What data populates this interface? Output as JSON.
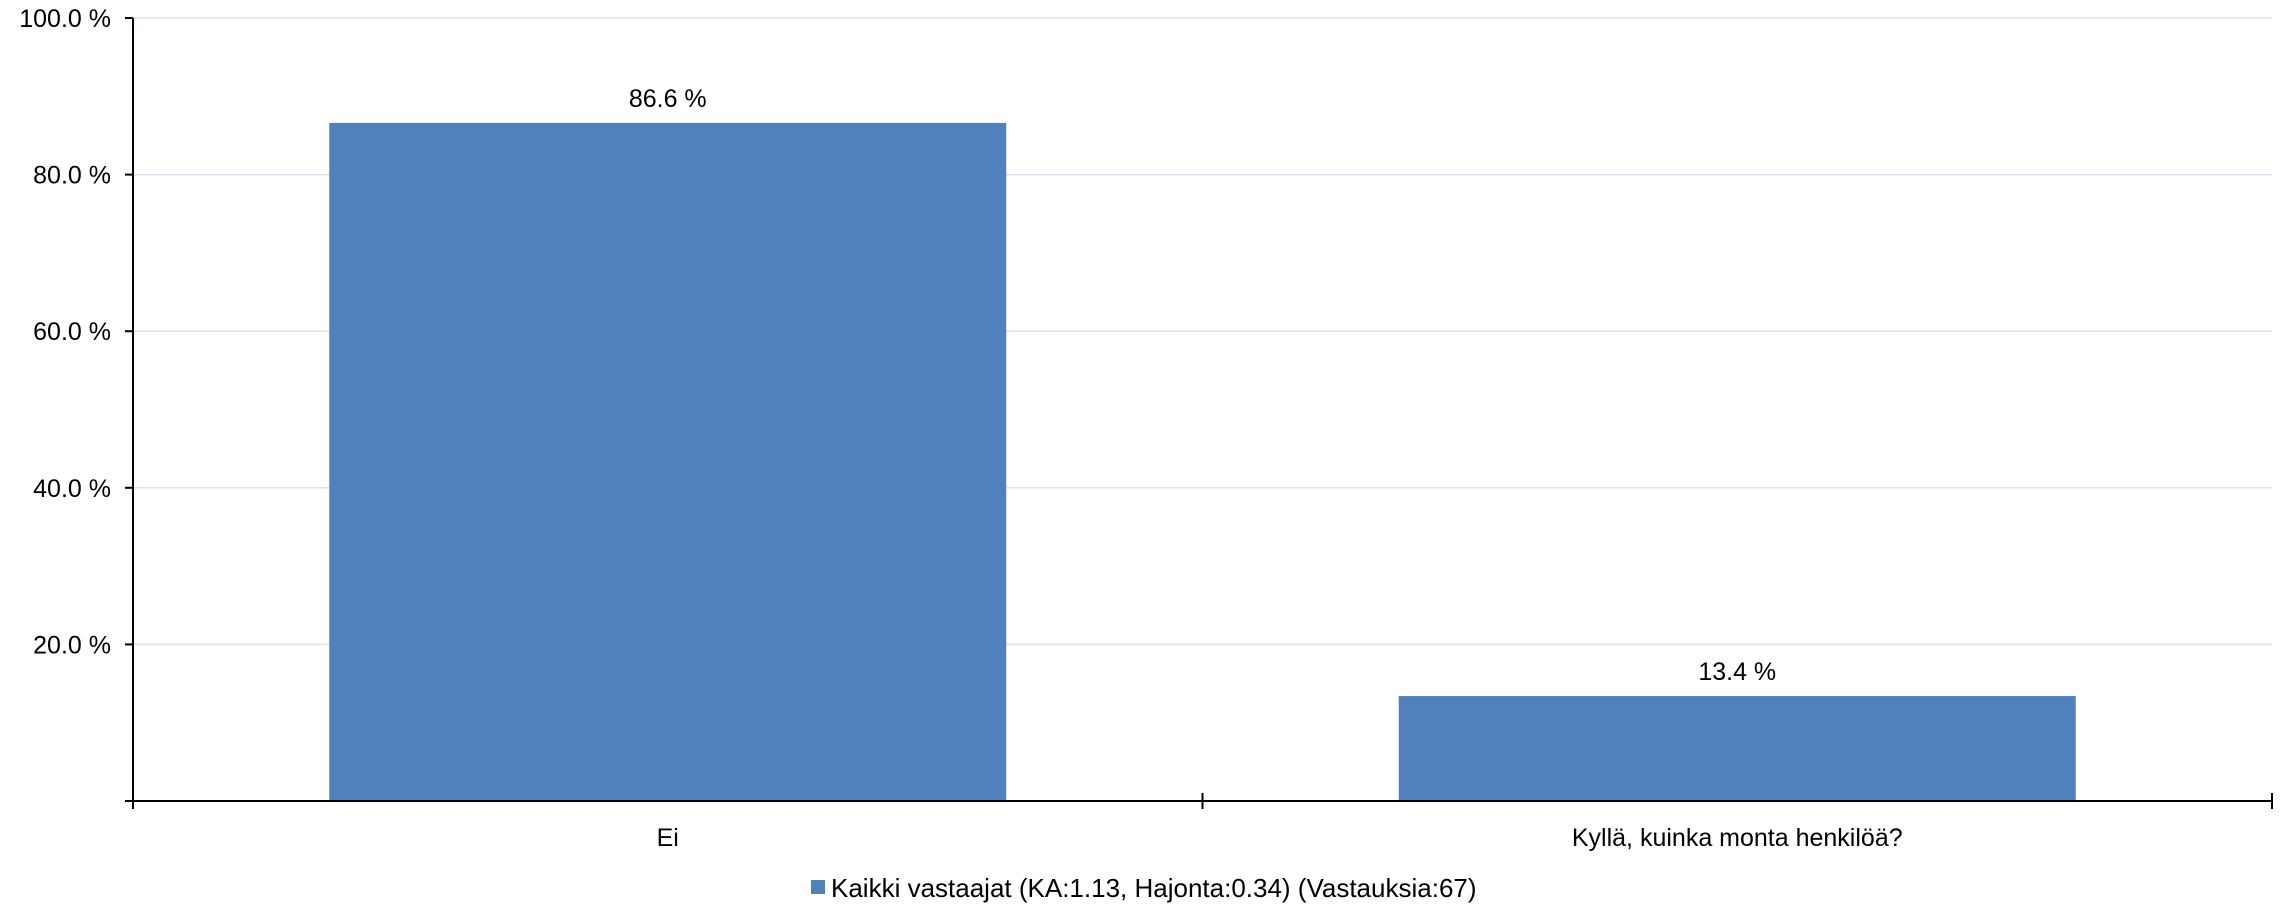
{
  "chart_data": {
    "type": "bar",
    "categories": [
      "Ei",
      "Kyllä, kuinka monta henkilöä?"
    ],
    "series": [
      {
        "name": "Kaikki vastaajat (KA:1.13, Hajonta:0.34) (Vastauksia:67)",
        "values": [
          86.6,
          13.4
        ],
        "color": "#4f81bd"
      }
    ],
    "data_labels": [
      "86.6 %",
      "13.4 %"
    ],
    "title": "",
    "xlabel": "",
    "ylabel": "",
    "ylim": [
      0,
      100
    ],
    "yticks": [
      20,
      40,
      60,
      80,
      100
    ],
    "ytick_labels": [
      "20.0 %",
      "40.0 %",
      "60.0 %",
      "80.0 %",
      "100.0 %"
    ],
    "grid": true,
    "grid_color": "#d9e3ef",
    "axis_color": "#000000",
    "legend_position": "bottom-center"
  }
}
